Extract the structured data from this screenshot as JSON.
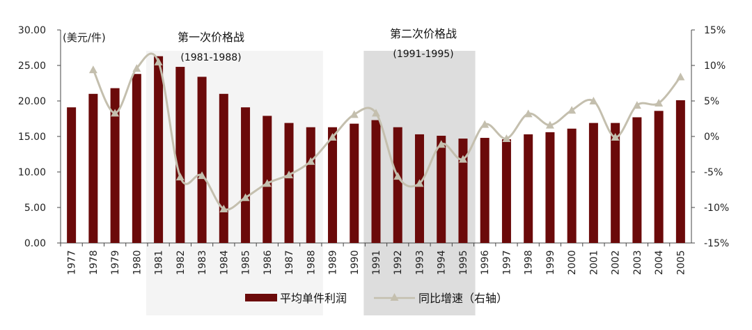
{
  "chart_data": {
    "type": "bar",
    "categories": [
      "1977",
      "1978",
      "1979",
      "1980",
      "1981",
      "1982",
      "1983",
      "1984",
      "1985",
      "1986",
      "1987",
      "1988",
      "1989",
      "1990",
      "1991",
      "1992",
      "1993",
      "1994",
      "1995",
      "1996",
      "1997",
      "1998",
      "1999",
      "2000",
      "2001",
      "2002",
      "2003",
      "2004",
      "2005"
    ],
    "series": [
      {
        "name": "平均单件利润",
        "type": "bar",
        "axis": "left",
        "color": "#6b0a0a",
        "values": [
          19.1,
          21.0,
          21.8,
          23.8,
          26.3,
          24.8,
          23.4,
          21.0,
          19.1,
          17.9,
          16.9,
          16.3,
          16.3,
          16.8,
          17.3,
          16.3,
          15.3,
          15.1,
          14.7,
          14.8,
          14.6,
          15.3,
          15.6,
          16.1,
          16.9,
          16.9,
          17.7,
          18.6,
          20.1
        ]
      },
      {
        "name": "同比增速（右轴）",
        "type": "line",
        "axis": "right",
        "color": "#c4bfae",
        "values": [
          null,
          9.4,
          3.3,
          9.6,
          10.5,
          -5.7,
          -5.5,
          -10.2,
          -8.6,
          -6.6,
          -5.4,
          -3.5,
          -0.1,
          3.1,
          3.3,
          -5.6,
          -6.6,
          -1.1,
          -3.2,
          1.7,
          -0.3,
          3.2,
          1.6,
          3.7,
          5.0,
          -0.1,
          4.4,
          4.7,
          8.4
        ]
      }
    ],
    "y_left": {
      "min": 0,
      "max": 30,
      "step": 5,
      "tick_labels": [
        "0.00",
        "5.00",
        "10.00",
        "15.00",
        "20.00",
        "25.00",
        "30.00"
      ],
      "unit": "(美元/件)"
    },
    "y_right": {
      "min": -15,
      "max": 15,
      "step": 5,
      "tick_labels": [
        "-15%",
        "-10%",
        "-5%",
        "0%",
        "5%",
        "10%",
        "15%"
      ]
    },
    "shaded_periods": [
      {
        "title": "第一次价格战",
        "range": "(1981-1988)",
        "from": "1981",
        "to": "1988",
        "color": "#f4f4f4"
      },
      {
        "title": "第二次价格战",
        "range": "(1991-1995)",
        "from": "1991",
        "to": "1995",
        "color": "#dddddd"
      }
    ],
    "legend": [
      {
        "label": "平均单件利润",
        "kind": "bar",
        "color": "#6b0a0a"
      },
      {
        "label": "同比增速（右轴）",
        "kind": "line",
        "color": "#c4bfae"
      }
    ],
    "legend_position": "bottom"
  }
}
